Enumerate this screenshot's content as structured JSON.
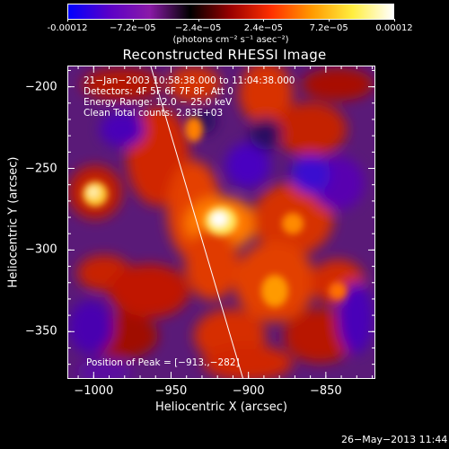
{
  "colorbar": {
    "ticks": [
      "-0.00012",
      "−7.2e−05",
      "−2.4e−05",
      "2.4e−05",
      "7.2e−05",
      "0.00012"
    ],
    "units": "(photons cm⁻² s⁻¹ asec⁻²)",
    "colors": [
      "#0000ff",
      "#5a00c8",
      "#8a1aa8",
      "#000000",
      "#9a0000",
      "#ff3000",
      "#ff9a00",
      "#ffee40",
      "#ffffff"
    ]
  },
  "title": "Reconstructed RHESSI Image",
  "annotations": {
    "line1": "21−Jan−2003 10:58:38.000 to 11:04:38.000",
    "line2": "Detectors: 4F 5F 6F 7F 8F, Att 0",
    "line3": "Energy Range: 12.0 − 25.0 keV",
    "line4": "Clean     Total counts: 2.83E+03"
  },
  "peak": "Position of Peak = [−913.,−282]",
  "axes": {
    "xlabel": "Heliocentric X (arcsec)",
    "ylabel": "Heliocentric Y (arcsec)",
    "xticks": [
      "−1000",
      "−950",
      "−900",
      "−850"
    ],
    "yticks": [
      "−200",
      "−250",
      "−300",
      "−350"
    ],
    "xlim": [
      -1017,
      -818
    ],
    "ylim": [
      -379,
      -187
    ]
  },
  "timestamp": "26−May−2013 11:44",
  "image": {
    "peak_position": [
      -913,
      -282
    ],
    "background_color": "#5a1a78"
  }
}
